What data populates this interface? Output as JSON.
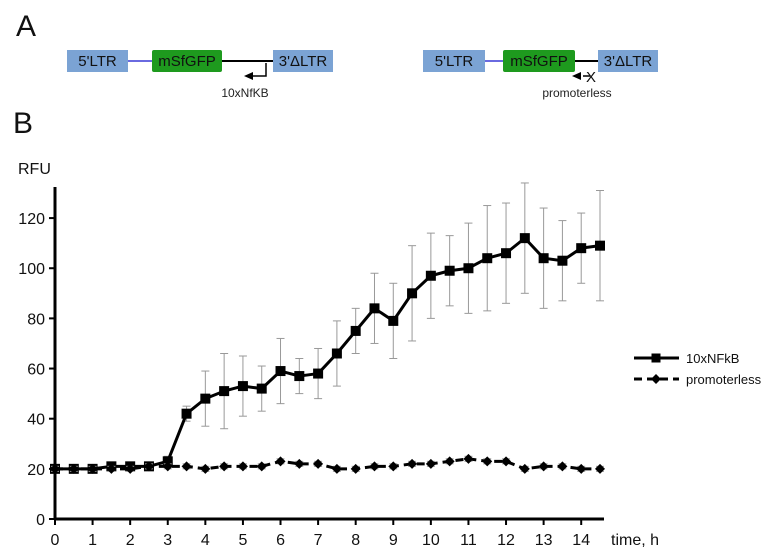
{
  "panels": {
    "a_label": "A",
    "b_label": "B"
  },
  "constructs": [
    {
      "ltr5": "5'LTR",
      "gene": "mSfGFP",
      "ltr3": "3'ΔLTR",
      "promoter": "10xNfKB"
    },
    {
      "ltr5": "5'LTR",
      "gene": "mSfGFP",
      "ltr3": "3'ΔLTR",
      "promoter": "promoterless",
      "promoter_mark": "X"
    }
  ],
  "colors": {
    "ltr": "#7ba3d4",
    "gene": "#1e9a1e",
    "linker": "#6a6ae0",
    "ink": "#000000",
    "error": "#999999"
  },
  "chart_data": {
    "type": "line",
    "xlabel": "time, h",
    "ylabel": "RFU",
    "xlim": [
      0,
      14.5
    ],
    "ylim": [
      0,
      130
    ],
    "xticks": [
      0,
      1,
      2,
      3,
      4,
      5,
      6,
      7,
      8,
      9,
      10,
      11,
      12,
      13,
      14
    ],
    "yticks": [
      0,
      20,
      40,
      60,
      80,
      100,
      120
    ],
    "grid": false,
    "legend_position": "right",
    "x": [
      0,
      0.5,
      1,
      1.5,
      2,
      2.5,
      3,
      3.5,
      4,
      4.5,
      5,
      5.5,
      6,
      6.5,
      7,
      7.5,
      8,
      8.5,
      9,
      9.5,
      10,
      10.5,
      11,
      11.5,
      12,
      12.5,
      13,
      13.5,
      14,
      14.5
    ],
    "series": [
      {
        "name": "10xNFkB",
        "line": "solid",
        "marker": "square",
        "values": [
          20,
          20,
          20,
          21,
          21,
          21,
          23,
          42,
          48,
          51,
          53,
          52,
          59,
          57,
          58,
          66,
          75,
          84,
          79,
          90,
          97,
          99,
          100,
          104,
          106,
          112,
          104,
          103,
          108,
          109
        ],
        "errors": [
          1,
          1,
          1,
          1,
          1,
          1,
          2,
          3,
          11,
          15,
          12,
          9,
          13,
          7,
          10,
          13,
          9,
          14,
          15,
          19,
          17,
          14,
          18,
          21,
          20,
          22,
          20,
          16,
          14,
          22
        ]
      },
      {
        "name": "promoterless",
        "line": "dashed",
        "marker": "diamond",
        "values": [
          20,
          20,
          20,
          20,
          20,
          21,
          21,
          21,
          20,
          21,
          21,
          21,
          23,
          22,
          22,
          20,
          20,
          21,
          21,
          22,
          22,
          23,
          24,
          23,
          23,
          20,
          21,
          21,
          20,
          20
        ],
        "errors": [
          1,
          1,
          1,
          1,
          1,
          1,
          1,
          1,
          1,
          1,
          1,
          1,
          1,
          1,
          1,
          1,
          1,
          1,
          1,
          1,
          1,
          1,
          1,
          1,
          1,
          1,
          1,
          1,
          1,
          1
        ]
      }
    ]
  }
}
